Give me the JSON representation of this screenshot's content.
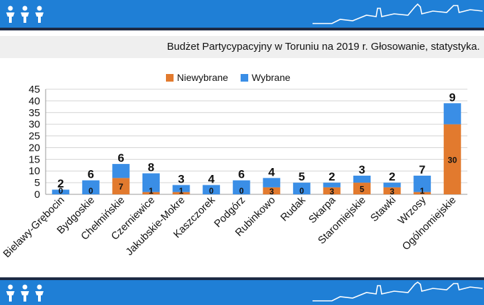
{
  "header": {
    "logo_icon": "three-people-logo-icon",
    "skyline_icon": "city-skyline-icon"
  },
  "footer": {
    "logo_icon": "three-people-logo-icon",
    "skyline_icon": "city-skyline-icon"
  },
  "colors": {
    "brand_blue": "#1f7fd6",
    "dark_stripe": "#1d2a44",
    "niewybrane": "#e27a2e",
    "wybrane": "#3a8ee6"
  },
  "chart_data": {
    "type": "bar",
    "stacked": true,
    "title": "Budżet Partycypacyjny w Toruniu na 2019 r. Głosowanie, statystyka.",
    "categories": [
      "Bielawy-Grębocin",
      "Bydgoskie",
      "Chełmińskie",
      "Czerniewice",
      "Jakubskie-Mokre",
      "Kaszczorek",
      "Podgórz",
      "Rubinkowo",
      "Rudak",
      "Skarpa",
      "Staromiejskie",
      "Stawki",
      "Wrzosy",
      "Ogólnomiejskie"
    ],
    "series": [
      {
        "name": "Niewybrane",
        "color": "#e27a2e",
        "values": [
          0,
          0,
          7,
          1,
          1,
          0,
          0,
          3,
          0,
          3,
          5,
          3,
          1,
          30
        ]
      },
      {
        "name": "Wybrane",
        "color": "#3a8ee6",
        "values": [
          2,
          6,
          6,
          8,
          3,
          4,
          6,
          4,
          5,
          2,
          3,
          2,
          7,
          9
        ]
      }
    ],
    "bottom_labels": [
      "0",
      "0",
      "7",
      "1",
      "1",
      "0",
      "0",
      "3",
      "0",
      "3",
      "5",
      "3",
      "1",
      "30"
    ],
    "top_labels": [
      "2",
      "6",
      "6",
      "8",
      "3",
      "4",
      "6",
      "4",
      "5",
      "2",
      "3",
      "2",
      "7",
      "9"
    ],
    "yticks": [
      "0",
      "5",
      "10",
      "15",
      "20",
      "25",
      "30",
      "35",
      "40",
      "45"
    ],
    "ylim": [
      0,
      45
    ],
    "grid": true,
    "legend_position": "top-center"
  }
}
